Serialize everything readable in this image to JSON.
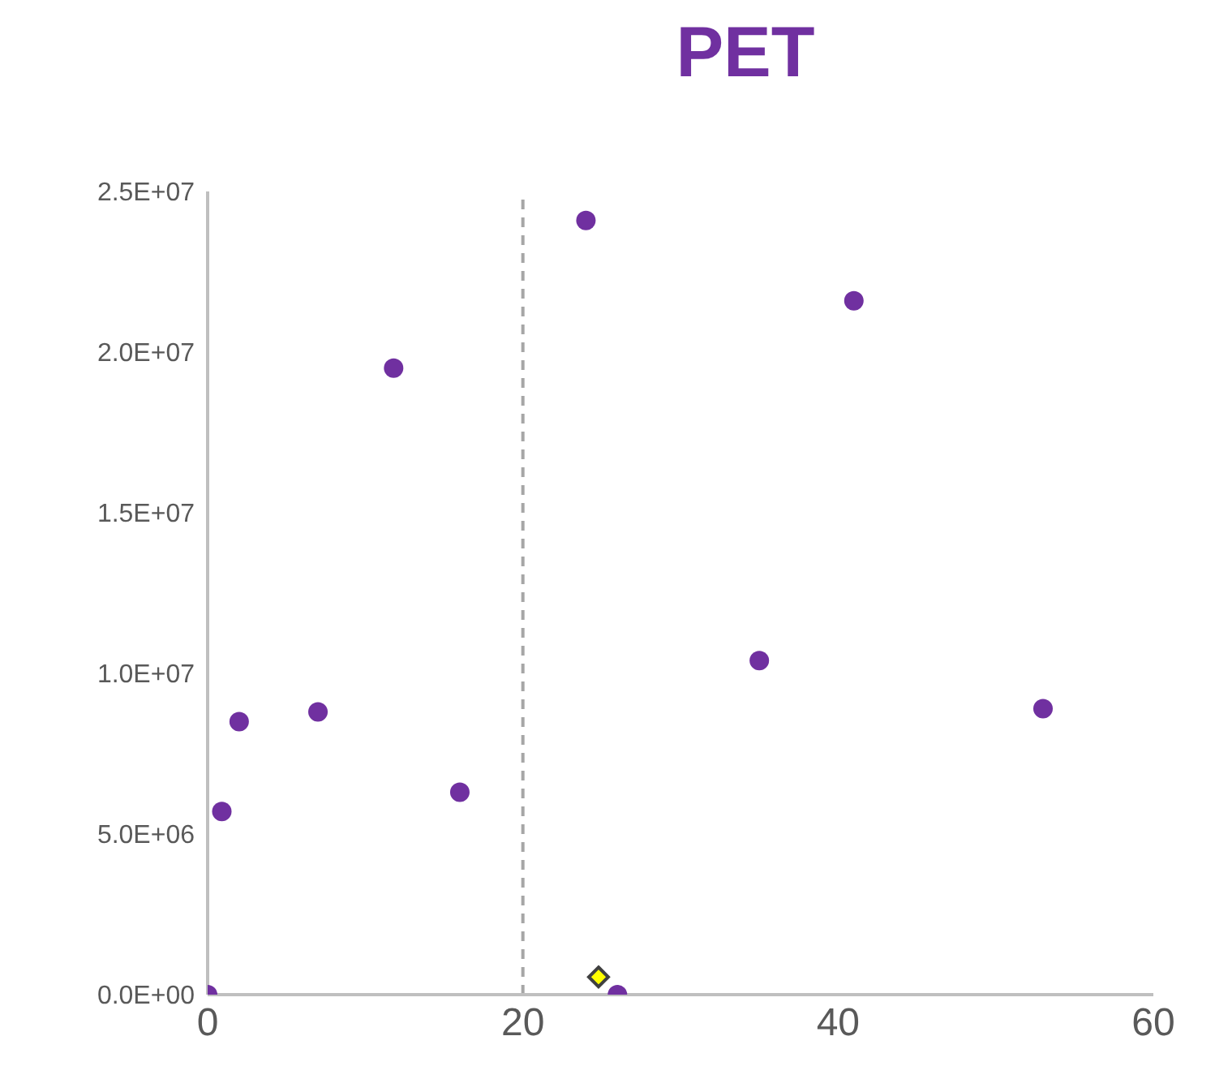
{
  "chart_data": {
    "type": "scatter",
    "title": "PET",
    "xlim": [
      0,
      60
    ],
    "xticks": [
      0,
      20,
      40,
      60
    ],
    "ylim": [
      0,
      25000000
    ],
    "yticks": [
      {
        "value": 0,
        "label": "0.0E+00"
      },
      {
        "value": 5000000,
        "label": "5.0E+06"
      },
      {
        "value": 10000000,
        "label": "1.0E+07"
      },
      {
        "value": 15000000,
        "label": "1.5E+07"
      },
      {
        "value": 20000000,
        "label": "2.0E+07"
      },
      {
        "value": 25000000,
        "label": "2.5E+07"
      }
    ],
    "grid": false,
    "legend": false,
    "ref_lines": [
      {
        "axis": "x",
        "value": 20,
        "color": "#a6a6a6",
        "line_style": "dashed"
      }
    ],
    "series": [
      {
        "color": "#7030a0",
        "marker": "circle",
        "x": [
          0,
          0.9,
          2,
          7,
          11.8,
          16,
          24,
          26,
          35,
          41,
          53
        ],
        "values": [
          0,
          5700000,
          8500000,
          8800000,
          19500000,
          6300000,
          24100000,
          0,
          10400000,
          21600000,
          8900000
        ]
      },
      {
        "color": "#ffff00",
        "marker": "diamond",
        "x": [
          24.8
        ],
        "values": [
          550000
        ]
      }
    ]
  }
}
